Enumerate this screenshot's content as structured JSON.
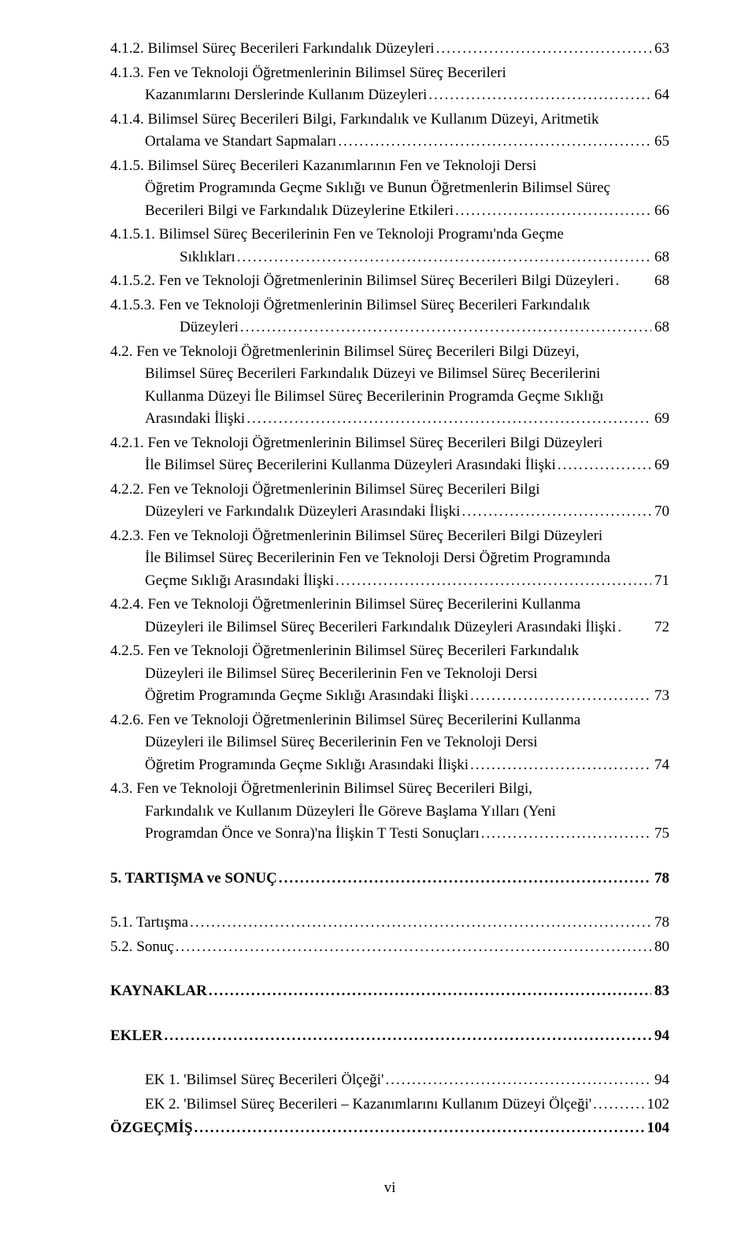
{
  "page_number_label": "vi",
  "dots": "........................................................................................................................................................................................",
  "entries": [
    {
      "type": "toc",
      "indent": 0,
      "lines": [
        "4.1.2. Bilimsel Süreç Becerileri Farkındalık Düzeyleri"
      ],
      "page": "63"
    },
    {
      "type": "toc",
      "indent": 0,
      "lines": [
        "4.1.3. Fen ve Teknoloji Öğretmenlerinin Bilimsel Süreç Becerileri",
        "Kazanımlarını Derslerinde Kullanım Düzeyleri"
      ],
      "page": "64",
      "cont_indent": 1
    },
    {
      "type": "toc",
      "indent": 0,
      "lines": [
        "4.1.4. Bilimsel Süreç Becerileri Bilgi, Farkındalık ve Kullanım Düzeyi, Aritmetik",
        "Ortalama ve Standart Sapmaları"
      ],
      "page": "65",
      "cont_indent": 1
    },
    {
      "type": "toc",
      "indent": 0,
      "lines": [
        "4.1.5. Bilimsel Süreç Becerileri Kazanımlarının Fen ve Teknoloji Dersi",
        "Öğretim Programında Geçme Sıklığı ve Bunun Öğretmenlerin Bilimsel Süreç",
        "Becerileri Bilgi ve Farkındalık Düzeylerine Etkileri"
      ],
      "page": "66",
      "cont_indent": 1
    },
    {
      "type": "toc",
      "indent": 0,
      "lines": [
        "4.1.5.1. Bilimsel Süreç Becerilerinin Fen ve Teknoloji Programı'nda Geçme",
        "Sıklıkları"
      ],
      "page": "68",
      "cont_indent": 2
    },
    {
      "type": "toc",
      "indent": 0,
      "lines": [
        "4.1.5.2. Fen ve Teknoloji Öğretmenlerinin Bilimsel Süreç Becerileri Bilgi Düzeyleri"
      ],
      "page": "68",
      "nodots": true
    },
    {
      "type": "toc",
      "indent": 0,
      "lines": [
        "4.1.5.3. Fen ve Teknoloji Öğretmenlerinin Bilimsel Süreç Becerileri Farkındalık",
        "Düzeyleri"
      ],
      "page": "68",
      "cont_indent": 2
    },
    {
      "type": "toc",
      "indent": 0,
      "lines": [
        "4.2. Fen ve Teknoloji Öğretmenlerinin Bilimsel Süreç Becerileri Bilgi Düzeyi,",
        "Bilimsel Süreç Becerileri Farkındalık Düzeyi ve Bilimsel Süreç Becerilerini",
        "Kullanma Düzeyi İle Bilimsel Süreç Becerilerinin Programda Geçme Sıklığı",
        "Arasındaki İlişki"
      ],
      "page": "69",
      "cont_indent": 1
    },
    {
      "type": "toc",
      "indent": 0,
      "lines": [
        "4.2.1. Fen ve Teknoloji Öğretmenlerinin Bilimsel Süreç Becerileri Bilgi Düzeyleri",
        "İle Bilimsel Süreç Becerilerini Kullanma Düzeyleri Arasındaki İlişki"
      ],
      "page": "69",
      "cont_indent": 1
    },
    {
      "type": "toc",
      "indent": 0,
      "lines": [
        "4.2.2. Fen ve Teknoloji Öğretmenlerinin Bilimsel Süreç Becerileri Bilgi",
        "Düzeyleri ve Farkındalık Düzeyleri Arasındaki İlişki"
      ],
      "page": "70",
      "cont_indent": 1
    },
    {
      "type": "toc",
      "indent": 0,
      "lines": [
        "4.2.3. Fen ve Teknoloji Öğretmenlerinin Bilimsel Süreç Becerileri Bilgi Düzeyleri",
        "İle Bilimsel Süreç Becerilerinin Fen ve Teknoloji Dersi Öğretim Programında",
        "Geçme Sıklığı Arasındaki İlişki"
      ],
      "page": "71",
      "cont_indent": 1
    },
    {
      "type": "toc",
      "indent": 0,
      "lines": [
        "4.2.4. Fen ve Teknoloji Öğretmenlerinin Bilimsel Süreç Becerilerini Kullanma",
        "Düzeyleri ile Bilimsel Süreç Becerileri Farkındalık Düzeyleri Arasındaki İlişki"
      ],
      "page": "72",
      "cont_indent": 1,
      "nodots": true
    },
    {
      "type": "toc",
      "indent": 0,
      "lines": [
        "4.2.5. Fen ve Teknoloji Öğretmenlerinin Bilimsel Süreç Becerileri Farkındalık",
        "Düzeyleri ile Bilimsel Süreç Becerilerinin Fen ve Teknoloji Dersi",
        "Öğretim Programında Geçme Sıklığı Arasındaki İlişki"
      ],
      "page": "73",
      "cont_indent": 1
    },
    {
      "type": "toc",
      "indent": 0,
      "lines": [
        "4.2.6. Fen ve Teknoloji Öğretmenlerinin Bilimsel Süreç Becerilerini Kullanma",
        "Düzeyleri ile Bilimsel Süreç Becerilerinin Fen ve Teknoloji Dersi",
        "Öğretim Programında Geçme Sıklığı Arasındaki İlişki"
      ],
      "page": "74",
      "cont_indent": 1
    },
    {
      "type": "toc",
      "indent": 0,
      "lines": [
        "4.3. Fen ve Teknoloji Öğretmenlerinin Bilimsel Süreç Becerileri Bilgi,",
        "Farkındalık ve Kullanım Düzeyleri İle Göreve Başlama Yılları (Yeni",
        "Programdan Önce ve Sonra)'na İlişkin T Testi Sonuçları"
      ],
      "page": "75",
      "cont_indent": 1
    },
    {
      "type": "head",
      "lines": [
        "5. TARTIŞMA ve SONUÇ"
      ],
      "page": "78"
    },
    {
      "type": "toc",
      "indent": 0,
      "lines": [
        "5.1. Tartışma"
      ],
      "page": "78"
    },
    {
      "type": "toc",
      "indent": 0,
      "lines": [
        "5.2. Sonuç"
      ],
      "page": "80"
    },
    {
      "type": "head",
      "lines": [
        "KAYNAKLAR"
      ],
      "page": "83"
    },
    {
      "type": "head",
      "lines": [
        "EKLER"
      ],
      "page": "94"
    },
    {
      "type": "toc",
      "indent": 1,
      "lines": [
        "EK 1. 'Bilimsel Süreç Becerileri Ölçeği'"
      ],
      "page": "94"
    },
    {
      "type": "toc",
      "indent": 1,
      "lines": [
        "EK 2. 'Bilimsel Süreç Becerileri – Kazanımlarını Kullanım Düzeyi Ölçeği'"
      ],
      "page": "102"
    },
    {
      "type": "head_nolead",
      "lines": [
        "ÖZGEÇMİŞ"
      ],
      "page": "104"
    }
  ]
}
